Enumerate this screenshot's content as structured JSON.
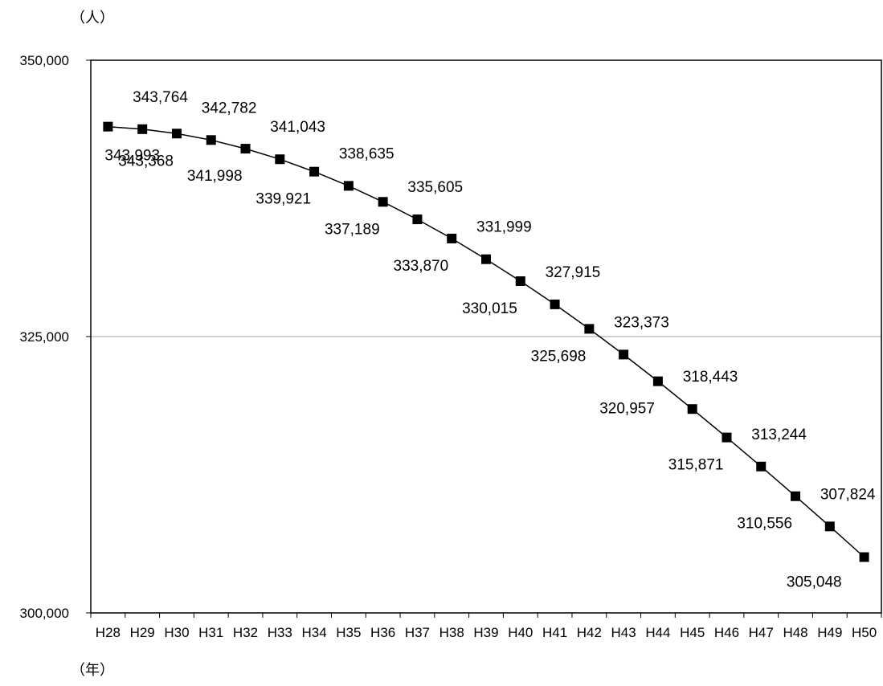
{
  "chart_data": {
    "type": "line",
    "title": "",
    "ylabel": "（人）",
    "xlabel": "（年）",
    "categories": [
      "H28",
      "H29",
      "H30",
      "H31",
      "H32",
      "H33",
      "H34",
      "H35",
      "H36",
      "H37",
      "H38",
      "H39",
      "H40",
      "H41",
      "H42",
      "H43",
      "H44",
      "H45",
      "H46",
      "H47",
      "H48",
      "H49",
      "H50"
    ],
    "series": [
      {
        "values": [
          343993,
          343764,
          343368,
          342782,
          341998,
          341043,
          339921,
          338635,
          337189,
          335605,
          333870,
          331999,
          330015,
          327915,
          325698,
          323373,
          320957,
          318443,
          315871,
          313244,
          310556,
          307824,
          305048
        ],
        "marker": "square",
        "color": "#000000"
      }
    ],
    "data_labels": [
      "343,993",
      "343,764",
      "343,368",
      "342,782",
      "341,998",
      "341,043",
      "339,921",
      "338,635",
      "337,189",
      "335,605",
      "333,870",
      "331,999",
      "330,015",
      "327,915",
      "325,698",
      "323,373",
      "320,957",
      "318,443",
      "315,871",
      "313,244",
      "310,556",
      "307,824",
      "305,048"
    ],
    "y_ticks": [
      300000,
      325000,
      350000
    ],
    "y_tick_labels": [
      "300,000",
      "325,000",
      "350,000"
    ],
    "ylim": [
      300000,
      350000
    ],
    "grid": "horizontal",
    "legend": "none"
  }
}
